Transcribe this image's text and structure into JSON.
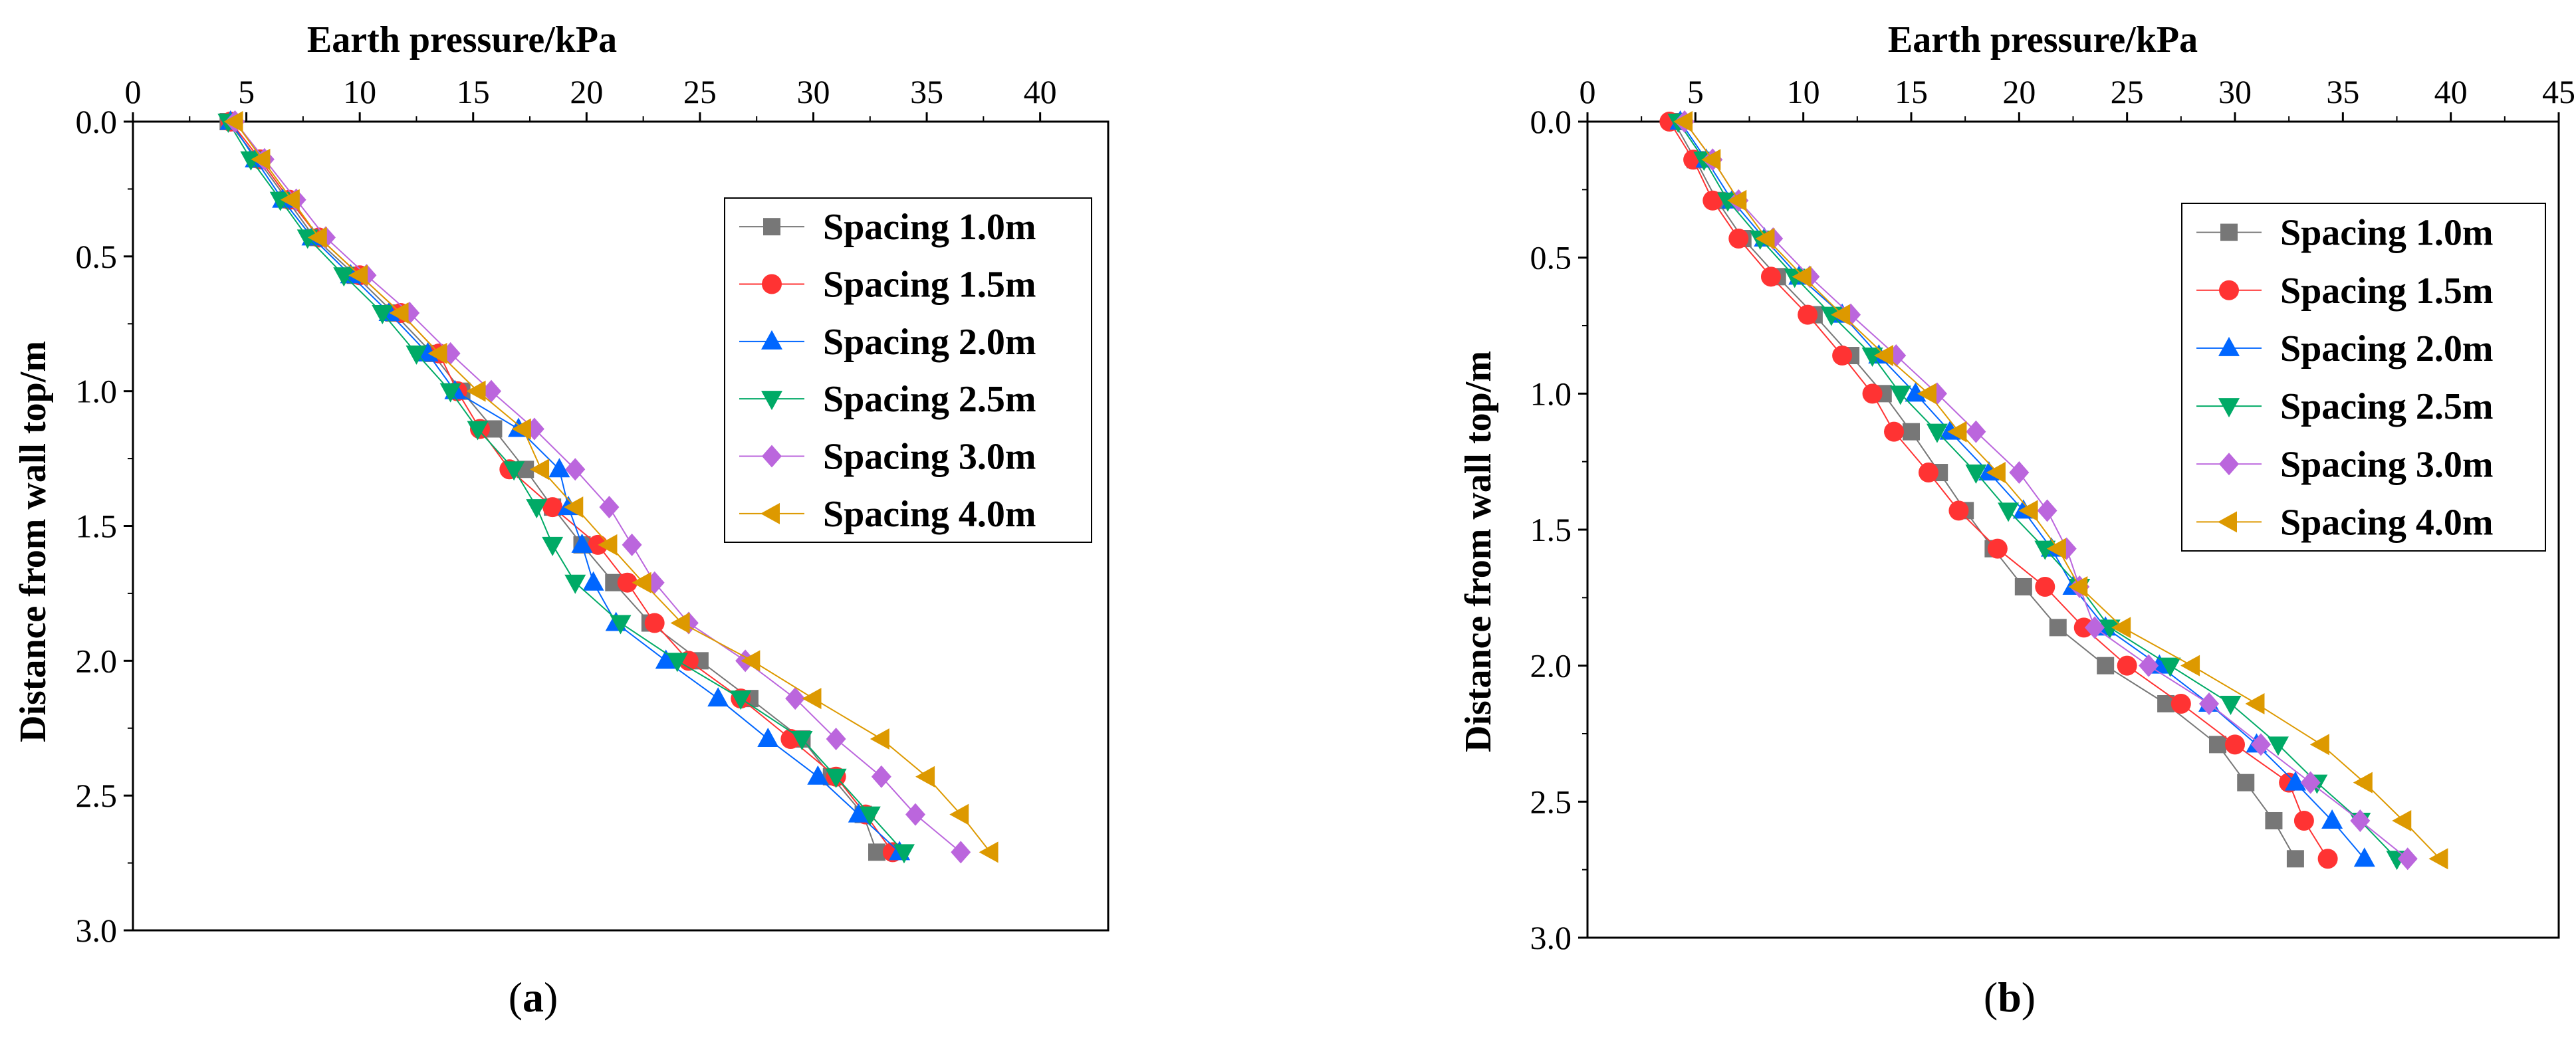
{
  "chart_data": [
    {
      "type": "line",
      "panel_label": {
        "open": "(",
        "letter": "a",
        "close": ")"
      },
      "xlabel": "Earth pressure/kPa",
      "ylabel": "Distance from wall top/m",
      "xlim": [
        0,
        43
      ],
      "ylim": [
        0,
        3.0
      ],
      "xticks": [
        0,
        5,
        10,
        15,
        20,
        25,
        30,
        35,
        40
      ],
      "xtick_labels": [
        "0",
        "5",
        "10",
        "15",
        "20",
        "25",
        "30",
        "35",
        "40"
      ],
      "yticks": [
        0,
        0.5,
        1.0,
        1.5,
        2.0,
        2.5,
        3.0
      ],
      "ytick_labels": [
        "0.0",
        "0.5",
        "1.0",
        "1.5",
        "2.0",
        "2.5",
        "3.0"
      ],
      "y_inverted": true,
      "x_axis_position": "top",
      "legend_position": "top-right",
      "y": [
        0.0,
        0.14,
        0.29,
        0.43,
        0.57,
        0.71,
        0.86,
        1.0,
        1.14,
        1.29,
        1.43,
        1.57,
        1.71,
        1.86,
        2.0,
        2.14,
        2.29,
        2.43,
        2.57,
        2.71
      ],
      "series": [
        {
          "name": "Spacing 1.0m",
          "color": "#777777",
          "marker": "square",
          "values": [
            4.2,
            5.5,
            6.8,
            8.0,
            9.8,
            11.5,
            13.2,
            14.5,
            15.9,
            17.3,
            18.5,
            19.8,
            21.2,
            22.8,
            25.0,
            27.2,
            29.5,
            30.8,
            32.2,
            32.8
          ]
        },
        {
          "name": "Spacing 1.5m",
          "color": "#ff3333",
          "marker": "circle",
          "values": [
            4.3,
            5.6,
            6.9,
            8.2,
            10.0,
            11.8,
            13.5,
            14.3,
            15.3,
            16.6,
            18.5,
            20.5,
            21.8,
            23.0,
            24.5,
            26.8,
            29.0,
            31.0,
            32.3,
            33.5
          ]
        },
        {
          "name": "Spacing 2.0m",
          "color": "#0066ff",
          "marker": "triangle-up",
          "values": [
            4.3,
            5.4,
            6.6,
            7.9,
            9.6,
            11.3,
            13.0,
            14.2,
            17.0,
            18.8,
            19.2,
            19.8,
            20.3,
            21.3,
            23.5,
            25.8,
            28.0,
            30.2,
            32.0,
            33.8
          ]
        },
        {
          "name": "Spacing 2.5m",
          "color": "#00aa66",
          "marker": "triangle-down",
          "values": [
            4.2,
            5.2,
            6.5,
            7.7,
            9.3,
            11.0,
            12.5,
            14.0,
            15.2,
            16.8,
            17.8,
            18.5,
            19.5,
            21.5,
            24.0,
            26.8,
            29.5,
            31.0,
            32.5,
            34.0
          ]
        },
        {
          "name": "Spacing 3.0m",
          "color": "#bb66dd",
          "marker": "diamond",
          "values": [
            4.5,
            5.8,
            7.2,
            8.5,
            10.3,
            12.2,
            14.0,
            15.8,
            17.7,
            19.5,
            21.0,
            22.0,
            23.0,
            24.5,
            27.0,
            29.2,
            31.0,
            33.0,
            34.5,
            36.5
          ]
        },
        {
          "name": "Spacing 4.0m",
          "color": "#dd9900",
          "marker": "triangle-left",
          "values": [
            4.5,
            5.7,
            7.0,
            8.2,
            10.0,
            11.8,
            13.5,
            15.2,
            17.2,
            18.0,
            19.5,
            21.0,
            22.5,
            24.2,
            27.3,
            30.0,
            33.0,
            35.0,
            36.5,
            37.8
          ]
        }
      ]
    },
    {
      "type": "line",
      "panel_label": {
        "open": "(",
        "letter": "b",
        "close": ")"
      },
      "xlabel": "Earth pressure/kPa",
      "ylabel": "Distance from wall top/m",
      "xlim": [
        0,
        45
      ],
      "ylim": [
        0,
        3.0
      ],
      "xticks": [
        0,
        5,
        10,
        15,
        20,
        25,
        30,
        35,
        40,
        45
      ],
      "xtick_labels": [
        "0",
        "5",
        "10",
        "15",
        "20",
        "25",
        "30",
        "35",
        "40",
        "45"
      ],
      "yticks": [
        0,
        0.5,
        1.0,
        1.5,
        2.0,
        2.5,
        3.0
      ],
      "ytick_labels": [
        "0.0",
        "0.5",
        "1.0",
        "1.5",
        "2.0",
        "2.5",
        "3.0"
      ],
      "y_inverted": true,
      "x_axis_position": "top",
      "legend_position": "top-right",
      "y": [
        0.0,
        0.14,
        0.29,
        0.43,
        0.57,
        0.71,
        0.86,
        1.0,
        1.14,
        1.29,
        1.43,
        1.57,
        1.71,
        1.86,
        2.0,
        2.14,
        2.29,
        2.43,
        2.57,
        2.71
      ],
      "series": [
        {
          "name": "Spacing 1.0m",
          "color": "#777777",
          "marker": "square",
          "values": [
            4.0,
            5.0,
            6.0,
            7.2,
            8.8,
            10.5,
            12.2,
            13.7,
            15.0,
            16.3,
            17.5,
            18.8,
            20.2,
            21.8,
            24.0,
            26.8,
            29.2,
            30.5,
            31.8,
            32.8
          ]
        },
        {
          "name": "Spacing 1.5m",
          "color": "#ff3333",
          "marker": "circle",
          "values": [
            3.8,
            4.9,
            5.8,
            7.0,
            8.5,
            10.2,
            11.8,
            13.2,
            14.2,
            15.8,
            17.2,
            19.0,
            21.2,
            23.0,
            25.0,
            27.5,
            30.0,
            32.5,
            33.2,
            34.3
          ]
        },
        {
          "name": "Spacing 2.0m",
          "color": "#0066ff",
          "marker": "triangle-up",
          "values": [
            4.3,
            5.5,
            6.7,
            8.2,
            9.8,
            11.8,
            13.5,
            15.2,
            16.8,
            18.6,
            20.2,
            21.5,
            22.5,
            24.0,
            26.5,
            28.8,
            31.0,
            32.8,
            34.5,
            36.0
          ]
        },
        {
          "name": "Spacing 2.5m",
          "color": "#00aa66",
          "marker": "triangle-down",
          "values": [
            4.2,
            5.4,
            6.5,
            8.0,
            9.6,
            11.3,
            13.2,
            14.5,
            16.2,
            18.0,
            19.5,
            21.2,
            22.8,
            24.2,
            27.0,
            29.8,
            32.0,
            33.8,
            35.8,
            37.5
          ]
        },
        {
          "name": "Spacing 3.0m",
          "color": "#bb66dd",
          "marker": "diamond",
          "values": [
            4.5,
            5.8,
            7.0,
            8.6,
            10.3,
            12.2,
            14.3,
            16.2,
            18.0,
            20.0,
            21.3,
            22.2,
            22.8,
            23.5,
            26.0,
            28.8,
            31.2,
            33.5,
            35.8,
            38.0
          ]
        },
        {
          "name": "Spacing 4.0m",
          "color": "#dd9900",
          "marker": "triangle-left",
          "values": [
            4.5,
            5.8,
            7.0,
            8.3,
            10.0,
            11.8,
            13.8,
            15.8,
            17.2,
            19.0,
            20.5,
            21.8,
            22.8,
            24.8,
            28.0,
            31.0,
            34.0,
            36.0,
            37.8,
            39.5
          ]
        }
      ]
    }
  ]
}
